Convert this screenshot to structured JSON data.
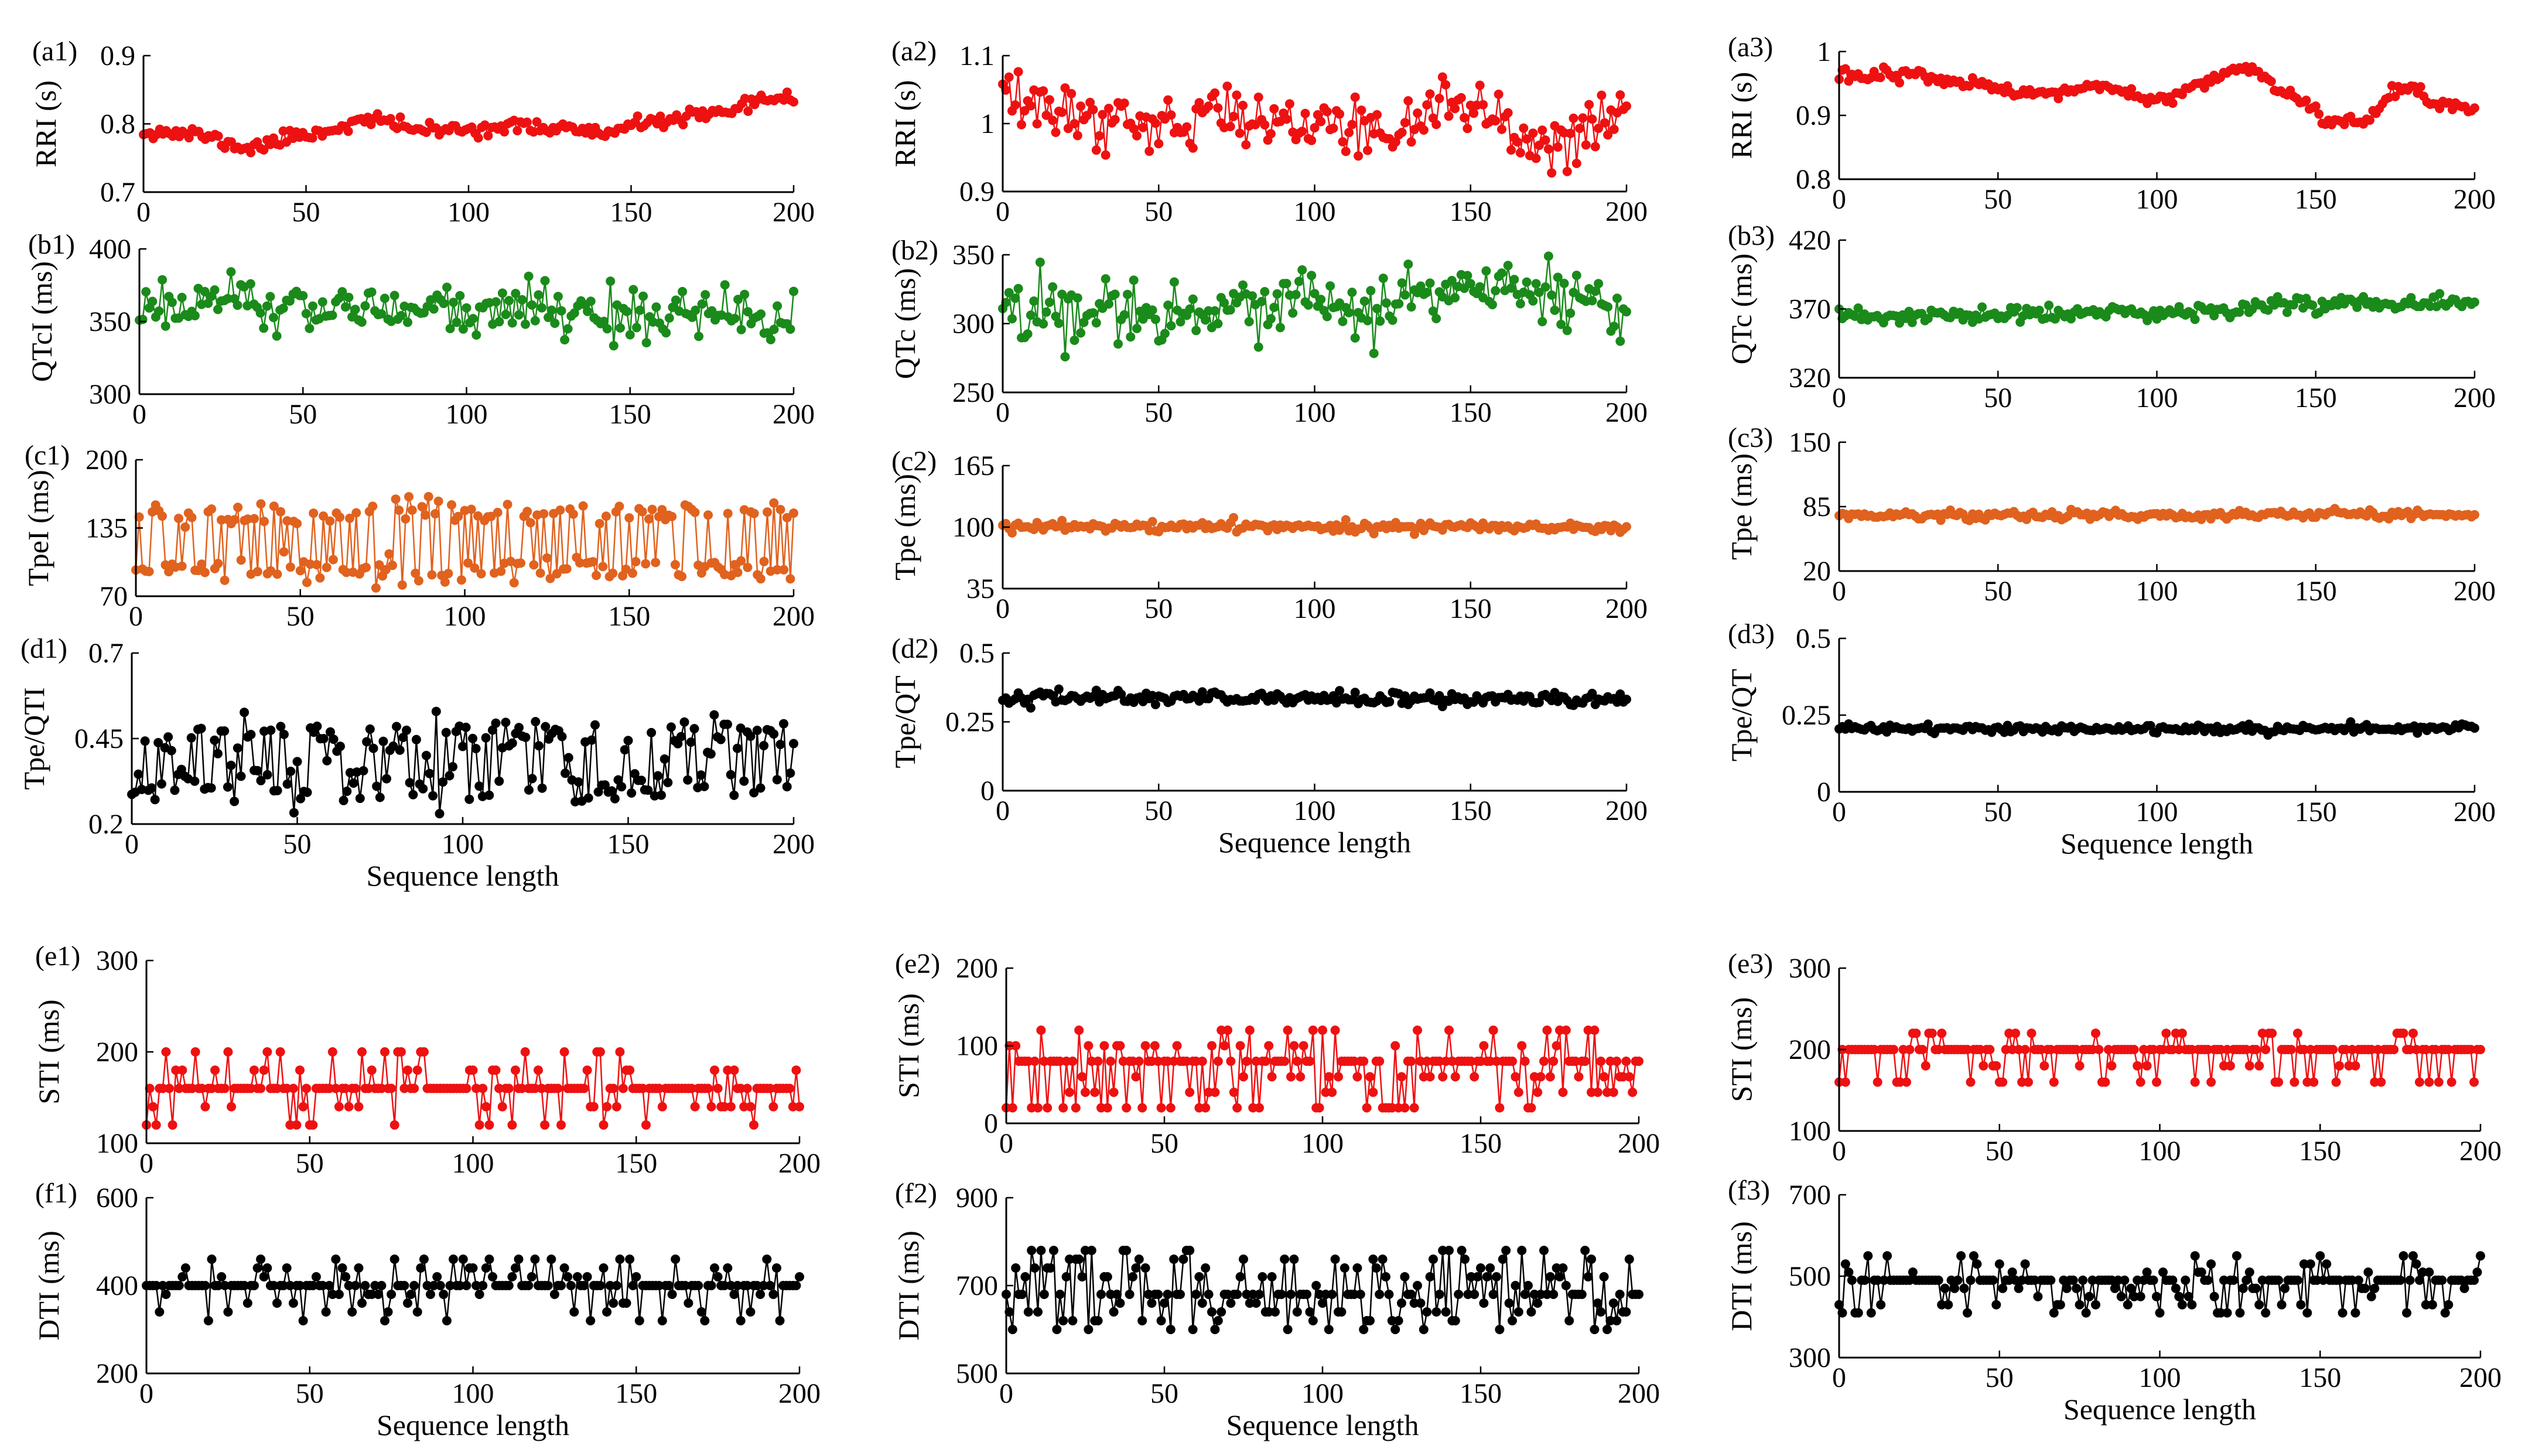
{
  "figure": {
    "x_label": "Sequence length",
    "colors": {
      "red": "#ee1111",
      "green": "#1a8a1a",
      "orange": "#e0621e",
      "black": "#000000"
    }
  },
  "chart_data": [
    {
      "id": "a1",
      "label": "(a1)",
      "type": "line",
      "ylabel": "RRI (s)",
      "color": "red",
      "ylim": [
        0.7,
        0.9
      ],
      "yticks": [
        "0.7",
        "0.8",
        "0.9"
      ],
      "xlim": [
        0,
        200
      ],
      "xticks": [
        "0",
        "50",
        "100",
        "150",
        "200"
      ],
      "n": 201,
      "pattern": "smooth",
      "waypoints": [
        [
          0,
          0.79
        ],
        [
          15,
          0.785
        ],
        [
          32,
          0.765
        ],
        [
          50,
          0.785
        ],
        [
          70,
          0.805
        ],
        [
          90,
          0.79
        ],
        [
          110,
          0.795
        ],
        [
          130,
          0.795
        ],
        [
          140,
          0.785
        ],
        [
          160,
          0.805
        ],
        [
          175,
          0.815
        ],
        [
          180,
          0.81
        ],
        [
          185,
          0.825
        ],
        [
          195,
          0.84
        ],
        [
          200,
          0.84
        ]
      ],
      "noise": 0.005,
      "seed": 11,
      "show_xlabel": false
    },
    {
      "id": "b1",
      "label": "(b1)",
      "type": "line",
      "ylabel": "QTcI (ms)",
      "color": "green",
      "ylim": [
        300,
        400
      ],
      "yticks": [
        "300",
        "350",
        "400"
      ],
      "xlim": [
        0,
        200
      ],
      "xticks": [
        "0",
        "50",
        "100",
        "150",
        "200"
      ],
      "n": 201,
      "pattern": "noise",
      "waypoints": [
        [
          0,
          362
        ],
        [
          100,
          358
        ],
        [
          200,
          352
        ]
      ],
      "noise": 9,
      "seed": 21,
      "show_xlabel": false
    },
    {
      "id": "c1",
      "label": "(c1)",
      "type": "line",
      "ylabel": "TpeI (ms)",
      "color": "orange",
      "ylim": [
        70,
        200
      ],
      "yticks": [
        "70",
        "135",
        "200"
      ],
      "xlim": [
        0,
        200
      ],
      "xticks": [
        "0",
        "50",
        "100",
        "150",
        "200"
      ],
      "n": 201,
      "pattern": "bimodal",
      "levels": [
        95,
        150
      ],
      "pswitch": 0.5,
      "noise": 6,
      "seed": 31,
      "show_xlabel": false
    },
    {
      "id": "d1",
      "label": "(d1)",
      "type": "line",
      "ylabel": "Tpe/QTI",
      "color": "black",
      "ylim": [
        0.2,
        0.7
      ],
      "yticks": [
        "0.2",
        "0.45",
        "0.7"
      ],
      "xlim": [
        0,
        200
      ],
      "xticks": [
        "0",
        "50",
        "100",
        "150",
        "200"
      ],
      "n": 201,
      "pattern": "bimodal",
      "levels": [
        0.31,
        0.45
      ],
      "pswitch": 0.45,
      "noise": 0.03,
      "seed": 41,
      "show_xlabel": true
    },
    {
      "id": "a2",
      "label": "(a2)",
      "type": "line",
      "ylabel": "RRI (s)",
      "color": "red",
      "ylim": [
        0.9,
        1.1
      ],
      "yticks": [
        "0.9",
        "1",
        "1.1"
      ],
      "xlim": [
        0,
        200
      ],
      "xticks": [
        "0",
        "50",
        "100",
        "150",
        "200"
      ],
      "n": 201,
      "pattern": "noise",
      "waypoints": [
        [
          0,
          1.03
        ],
        [
          40,
          1.0
        ],
        [
          80,
          1.01
        ],
        [
          120,
          0.99
        ],
        [
          150,
          1.03
        ],
        [
          170,
          0.97
        ],
        [
          200,
          1.0
        ]
      ],
      "noise": 0.02,
      "seed": 12,
      "show_xlabel": false
    },
    {
      "id": "b2",
      "label": "(b2)",
      "type": "line",
      "ylabel": "QTc (ms)",
      "color": "green",
      "ylim": [
        250,
        350
      ],
      "yticks": [
        "250",
        "300",
        "350"
      ],
      "xlim": [
        0,
        200
      ],
      "xticks": [
        "0",
        "50",
        "100",
        "150",
        "200"
      ],
      "n": 201,
      "pattern": "noise",
      "waypoints": [
        [
          0,
          310
        ],
        [
          100,
          312
        ],
        [
          160,
          325
        ],
        [
          200,
          310
        ]
      ],
      "noise": 11,
      "seed": 22,
      "show_xlabel": false
    },
    {
      "id": "c2",
      "label": "(c2)",
      "type": "line",
      "ylabel": "Tpe (ms)",
      "color": "orange",
      "ylim": [
        35,
        165
      ],
      "yticks": [
        "35",
        "100",
        "165"
      ],
      "xlim": [
        0,
        200
      ],
      "xticks": [
        "0",
        "50",
        "100",
        "150",
        "200"
      ],
      "n": 201,
      "pattern": "noise",
      "waypoints": [
        [
          0,
          101
        ],
        [
          200,
          100
        ]
      ],
      "noise": 2.5,
      "seed": 32,
      "show_xlabel": false
    },
    {
      "id": "d2",
      "label": "(d2)",
      "type": "line",
      "ylabel": "Tpe/QT",
      "color": "black",
      "ylim": [
        0,
        0.5
      ],
      "yticks": [
        "0",
        "0.25",
        "0.5"
      ],
      "xlim": [
        0,
        200
      ],
      "xticks": [
        "0",
        "50",
        "100",
        "150",
        "200"
      ],
      "n": 201,
      "pattern": "noise",
      "waypoints": [
        [
          0,
          0.34
        ],
        [
          200,
          0.33
        ]
      ],
      "noise": 0.012,
      "seed": 42,
      "show_xlabel": true
    },
    {
      "id": "a3",
      "label": "(a3)",
      "type": "line",
      "ylabel": "RRI (s)",
      "color": "red",
      "ylim": [
        0.8,
        1.0
      ],
      "yticks": [
        "0.8",
        "0.9",
        "1"
      ],
      "xlim": [
        0,
        200
      ],
      "xticks": [
        "0",
        "50",
        "100",
        "150",
        "200"
      ],
      "n": 201,
      "pattern": "smooth",
      "waypoints": [
        [
          0,
          0.96
        ],
        [
          20,
          0.965
        ],
        [
          40,
          0.95
        ],
        [
          60,
          0.93
        ],
        [
          80,
          0.945
        ],
        [
          100,
          0.925
        ],
        [
          115,
          0.95
        ],
        [
          128,
          0.975
        ],
        [
          140,
          0.935
        ],
        [
          155,
          0.89
        ],
        [
          165,
          0.895
        ],
        [
          178,
          0.945
        ],
        [
          190,
          0.915
        ],
        [
          200,
          0.915
        ]
      ],
      "noise": 0.005,
      "seed": 13,
      "show_xlabel": false
    },
    {
      "id": "b3",
      "label": "(b3)",
      "type": "line",
      "ylabel": "QTc (ms)",
      "color": "green",
      "ylim": [
        320,
        420
      ],
      "yticks": [
        "320",
        "370",
        "420"
      ],
      "xlim": [
        0,
        200
      ],
      "xticks": [
        "0",
        "50",
        "100",
        "150",
        "200"
      ],
      "n": 201,
      "pattern": "noise",
      "waypoints": [
        [
          0,
          364
        ],
        [
          100,
          367
        ],
        [
          150,
          374
        ],
        [
          200,
          376
        ]
      ],
      "noise": 3,
      "seed": 23,
      "show_xlabel": false
    },
    {
      "id": "c3",
      "label": "(c3)",
      "type": "line",
      "ylabel": "Tpe (ms)",
      "color": "orange",
      "ylim": [
        20,
        150
      ],
      "yticks": [
        "20",
        "85",
        "150"
      ],
      "xlim": [
        0,
        200
      ],
      "xticks": [
        "0",
        "50",
        "100",
        "150",
        "200"
      ],
      "n": 201,
      "pattern": "noise",
      "waypoints": [
        [
          0,
          76
        ],
        [
          200,
          77
        ]
      ],
      "noise": 2.2,
      "seed": 33,
      "show_xlabel": false
    },
    {
      "id": "d3",
      "label": "(d3)",
      "type": "line",
      "ylabel": "Tpe/QT",
      "color": "black",
      "ylim": [
        0,
        0.5
      ],
      "yticks": [
        "0",
        "0.25",
        "0.5"
      ],
      "xlim": [
        0,
        200
      ],
      "xticks": [
        "0",
        "50",
        "100",
        "150",
        "200"
      ],
      "n": 201,
      "pattern": "noise",
      "waypoints": [
        [
          0,
          0.205
        ],
        [
          200,
          0.205
        ]
      ],
      "noise": 0.007,
      "seed": 43,
      "show_xlabel": true
    },
    {
      "id": "e1",
      "label": "(e1)",
      "type": "line",
      "ylabel": "STI (ms)",
      "color": "red",
      "ylim": [
        100,
        300
      ],
      "yticks": [
        "100",
        "200",
        "300"
      ],
      "xlim": [
        0,
        200
      ],
      "xticks": [
        "0",
        "50",
        "100",
        "150",
        "200"
      ],
      "n": 201,
      "pattern": "discrete",
      "base": 160,
      "step": 20,
      "pchange": 0.35,
      "range": [
        -2,
        2
      ],
      "seed": 51,
      "show_xlabel": false
    },
    {
      "id": "f1",
      "label": "(f1)",
      "type": "line",
      "ylabel": "DTI (ms)",
      "color": "black",
      "ylim": [
        200,
        600
      ],
      "yticks": [
        "200",
        "400",
        "600"
      ],
      "xlim": [
        0,
        200
      ],
      "xticks": [
        "0",
        "50",
        "100",
        "150",
        "200"
      ],
      "n": 201,
      "pattern": "discrete",
      "base": 400,
      "step": 20,
      "pchange": 0.45,
      "range": [
        -4,
        3
      ],
      "seed": 61,
      "show_xlabel": true
    },
    {
      "id": "e2",
      "label": "(e2)",
      "type": "line",
      "ylabel": "STI (ms)",
      "color": "red",
      "ylim": [
        0,
        200
      ],
      "yticks": [
        "0",
        "100",
        "200"
      ],
      "xlim": [
        0,
        200
      ],
      "xticks": [
        "0",
        "50",
        "100",
        "150",
        "200"
      ],
      "n": 201,
      "pattern": "discrete",
      "base": 80,
      "step": 20,
      "pchange": 0.55,
      "range": [
        -3,
        2
      ],
      "seed": 52,
      "show_xlabel": false
    },
    {
      "id": "f2",
      "label": "(f2)",
      "type": "line",
      "ylabel": "DTI (ms)",
      "color": "black",
      "ylim": [
        500,
        900
      ],
      "yticks": [
        "500",
        "700",
        "900"
      ],
      "xlim": [
        0,
        200
      ],
      "xticks": [
        "0",
        "50",
        "100",
        "150",
        "200"
      ],
      "n": 201,
      "pattern": "discrete",
      "base": 680,
      "step": 20,
      "pchange": 0.7,
      "range": [
        -4,
        5
      ],
      "seed": 62,
      "show_xlabel": true
    },
    {
      "id": "e3",
      "label": "(e3)",
      "type": "line",
      "ylabel": "STI (ms)",
      "color": "red",
      "ylim": [
        100,
        300
      ],
      "yticks": [
        "100",
        "200",
        "300"
      ],
      "xlim": [
        0,
        200
      ],
      "xticks": [
        "0",
        "50",
        "100",
        "150",
        "200"
      ],
      "n": 201,
      "pattern": "discrete",
      "base": 200,
      "step": 20,
      "pchange": 0.3,
      "range": [
        -2,
        1
      ],
      "seed": 53,
      "show_xlabel": false
    },
    {
      "id": "f3",
      "label": "(f3)",
      "type": "line",
      "ylabel": "DTI (ms)",
      "color": "black",
      "ylim": [
        300,
        700
      ],
      "yticks": [
        "300",
        "500",
        "700"
      ],
      "xlim": [
        0,
        200
      ],
      "xticks": [
        "0",
        "50",
        "100",
        "150",
        "200"
      ],
      "n": 201,
      "pattern": "discrete",
      "base": 490,
      "step": 20,
      "pchange": 0.45,
      "range": [
        -4,
        3
      ],
      "seed": 63,
      "show_xlabel": true
    }
  ]
}
